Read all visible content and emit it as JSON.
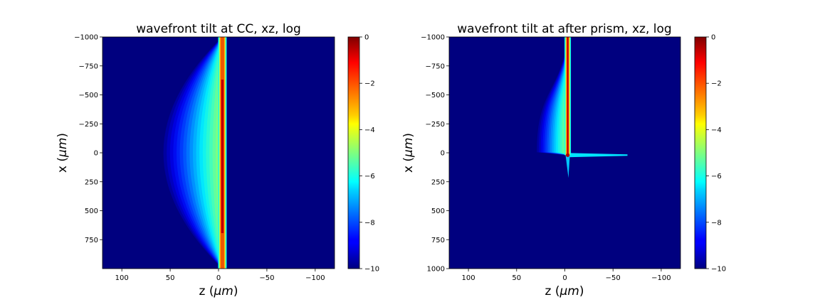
{
  "chart_data": [
    {
      "type": "heatmap",
      "title": "wavefront tilt at CC, xz, log",
      "xlabel": "z (μm)",
      "ylabel": "x (μm)",
      "xlim": [
        120,
        -120
      ],
      "ylim": [
        -1000,
        1000
      ],
      "x_ticks": [
        100,
        50,
        0,
        -50,
        -100
      ],
      "x_tick_labels": [
        "100",
        "50",
        "0",
        "−50",
        "−100"
      ],
      "y_ticks": [
        -1000,
        -750,
        -500,
        -250,
        0,
        250,
        500,
        750
      ],
      "y_tick_labels": [
        "−1000",
        "−750",
        "−500",
        "−250",
        "0",
        "250",
        "500",
        "750"
      ],
      "colorbar": {
        "colormap": "jet",
        "range": [
          -10,
          0
        ],
        "ticks": [
          0,
          -2,
          -4,
          -6,
          -8,
          -10
        ],
        "tick_labels": [
          "0",
          "−2",
          "−4",
          "−6",
          "−8",
          "−10"
        ]
      },
      "field": {
        "kind": "uniform_pulse",
        "z_peak": -4,
        "peak_value": 0,
        "x_extent": [
          -1000,
          1000
        ],
        "tail_direction": "negative_z",
        "tail_max_depth": -65
      }
    },
    {
      "type": "heatmap",
      "title": "wavefront tilt at after prism, xz, log",
      "xlabel": "z (μm)",
      "ylabel": "x (μm)",
      "xlim": [
        120,
        -120
      ],
      "ylim": [
        -1000,
        1000
      ],
      "x_ticks": [
        100,
        50,
        0,
        -50,
        -100
      ],
      "x_tick_labels": [
        "100",
        "50",
        "0",
        "−50",
        "−100"
      ],
      "y_ticks": [
        -1000,
        -750,
        -500,
        -250,
        0,
        250,
        500,
        750,
        1000
      ],
      "y_tick_labels": [
        "−1000",
        "−750",
        "−500",
        "−250",
        "0",
        "250",
        "500",
        "750",
        "1000"
      ],
      "colorbar": {
        "colormap": "jet",
        "range": [
          -10,
          0
        ],
        "ticks": [
          0,
          -2,
          -4,
          -6,
          -8,
          -10
        ],
        "tick_labels": [
          "0",
          "−2",
          "−4",
          "−6",
          "−8",
          "−10"
        ]
      },
      "field": {
        "kind": "tilted_pulse",
        "z_peak": -3,
        "peak_value": 0,
        "x_extent": [
          -1000,
          30
        ],
        "focus_x": 20,
        "tail_direction": "negative_z",
        "tail_max_depth": -35,
        "streak_z_end": -65
      }
    }
  ]
}
